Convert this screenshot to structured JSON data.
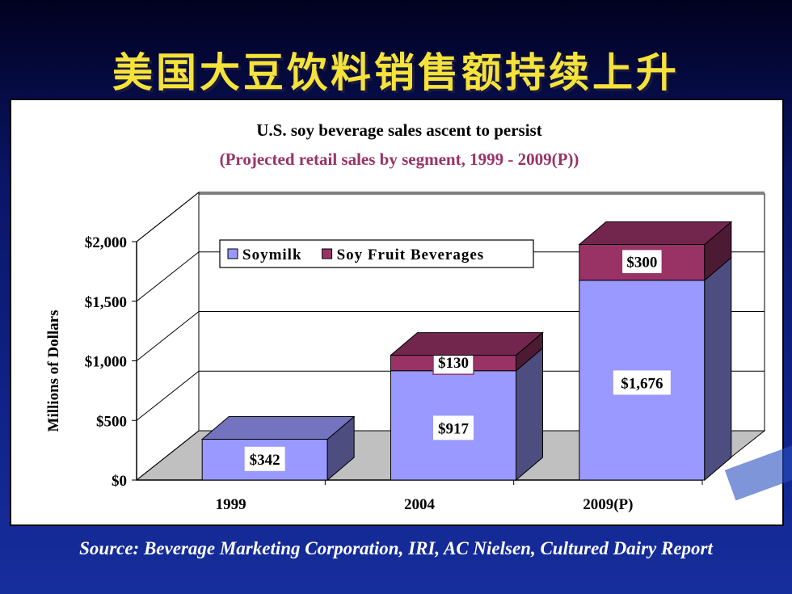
{
  "slide": {
    "title": "美国大豆饮料销售额持续上升",
    "source": "Source: Beverage Marketing Corporation, IRI, AC Nielsen, Cultured Dairy Report"
  },
  "chart_data": {
    "type": "bar",
    "stacked": true,
    "three_d": true,
    "title": "U.S. soy beverage sales ascent to persist",
    "subtitle": "(Projected retail sales by segment, 1999 - 2009(P))",
    "xlabel": "",
    "ylabel": "Millions of Dollars",
    "categories": [
      "1999",
      "2004",
      "2009(P)"
    ],
    "series": [
      {
        "name": "Soymilk",
        "values": [
          342,
          917,
          1676
        ],
        "labels": [
          "$342",
          "$917",
          "$1,676"
        ],
        "color": "#9999ff"
      },
      {
        "name": "Soy Fruit Beverages",
        "values": [
          0,
          130,
          300
        ],
        "labels": [
          "",
          "$130",
          "$300"
        ],
        "color": "#993366"
      }
    ],
    "ylim": [
      0,
      2000
    ],
    "yticks": [
      0,
      500,
      1000,
      1500,
      2000
    ],
    "ytick_labels": [
      "$0",
      "$500",
      "$1,000",
      "$1,500",
      "$2,000"
    ],
    "grid": true,
    "legend_position": "top-left",
    "floor_color": "#c0c0c0",
    "subtitle_color": "#993366"
  }
}
